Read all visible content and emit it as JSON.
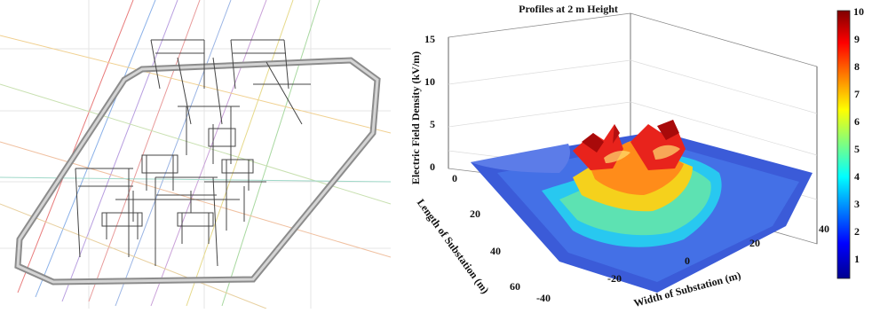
{
  "left_figure": {
    "description_icon": "substation-wireframe-icon"
  },
  "chart_data": {
    "type": "surface3d",
    "title": "Profiles at 2 m Height",
    "xlabel": "Width of Substation (m)",
    "ylabel": "Length of Substation (m)",
    "zlabel": "Electric Field Density (kV/m)",
    "x_ticks": [
      "-40",
      "-20",
      "0",
      "20",
      "40"
    ],
    "y_ticks": [
      "0",
      "20",
      "40",
      "60"
    ],
    "z_ticks": [
      "0",
      "5",
      "10",
      "15"
    ],
    "colorbar_ticks": [
      "10",
      "9",
      "8",
      "7",
      "6",
      "5",
      "4",
      "3",
      "2",
      "1"
    ],
    "xlim": [
      -40,
      40
    ],
    "ylim": [
      0,
      60
    ],
    "zlim": [
      0,
      15
    ],
    "clim": [
      0,
      10
    ],
    "colormap": "jet",
    "colormap_colors": [
      "#00008f",
      "#0000ff",
      "#0080ff",
      "#00ffff",
      "#80ff80",
      "#ffff00",
      "#ff8000",
      "#ff0000",
      "#800000"
    ]
  }
}
